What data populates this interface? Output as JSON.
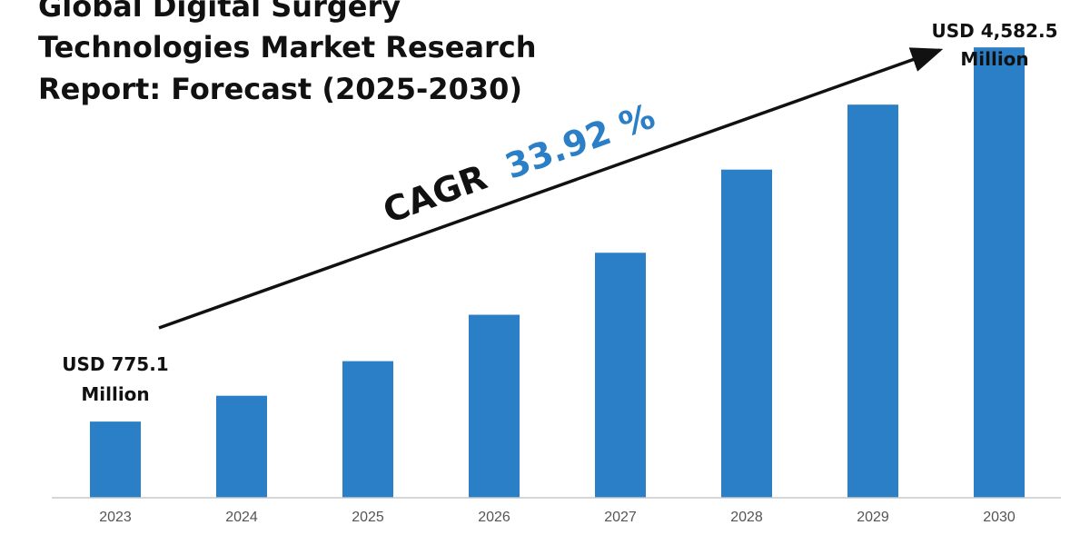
{
  "chart_data": {
    "type": "bar",
    "title": [
      "Global Digital Surgery",
      "Technologies Market Research",
      "Report: Forecast (2025-2030)"
    ],
    "categories": [
      "2023",
      "2024",
      "2025",
      "2026",
      "2027",
      "2028",
      "2029",
      "2030"
    ],
    "values": [
      775.1,
      1038,
      1390,
      1862,
      2493,
      3339,
      4000,
      4582.5
    ],
    "ylim": [
      0,
      5000
    ],
    "grid": false,
    "legend": "none",
    "bar_color": "#2a7fc6",
    "annotations": {
      "start_label": [
        "USD 775.1",
        "Million"
      ],
      "end_label": [
        "USD 4,582.5",
        "Million"
      ],
      "cagr_label": "CAGR",
      "cagr_value": "33.92 %",
      "cagr_value_color": "#2a7fc6"
    }
  }
}
